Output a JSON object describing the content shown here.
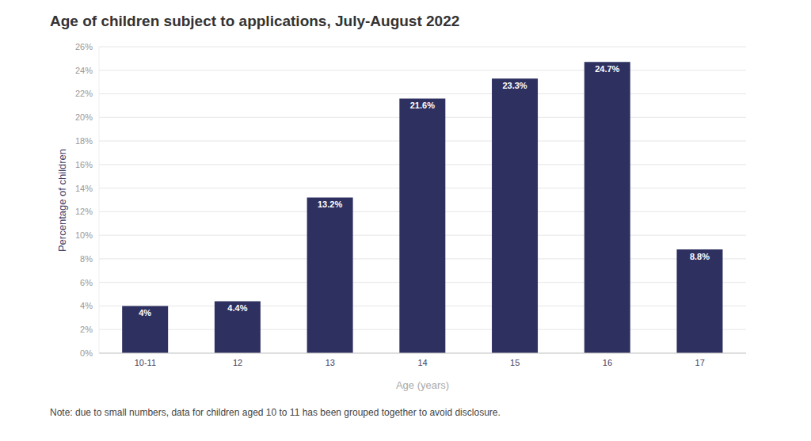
{
  "chart_data": {
    "type": "bar",
    "title": "Age of children subject to applications, July-August 2022",
    "x_label": "Age (years)",
    "y_label": "Percentage of children",
    "note": "Note: due to small numbers, data for children aged 10 to 11 has been grouped together to avoid disclosure.",
    "categories": [
      "10-11",
      "12",
      "13",
      "14",
      "15",
      "16",
      "17"
    ],
    "values": [
      4,
      4.4,
      13.2,
      21.6,
      23.3,
      24.7,
      8.8
    ],
    "value_labels": [
      "4%",
      "4.4%",
      "13.2%",
      "21.6%",
      "23.3%",
      "24.7%",
      "8.8%"
    ],
    "color": "#2e3160",
    "ylim": [
      0,
      26
    ],
    "yticks": [
      {
        "value": 0,
        "label": "0%"
      },
      {
        "value": 2,
        "label": "2%"
      },
      {
        "value": 4,
        "label": "4%"
      },
      {
        "value": 6,
        "label": "6%"
      },
      {
        "value": 8,
        "label": "8%"
      },
      {
        "value": 10,
        "label": "10%"
      },
      {
        "value": 12,
        "label": "12%"
      },
      {
        "value": 14,
        "label": "14%"
      },
      {
        "value": 16,
        "label": "16%"
      },
      {
        "value": 18,
        "label": "18%"
      },
      {
        "value": 20,
        "label": "20%"
      },
      {
        "value": 22,
        "label": "22%"
      },
      {
        "value": 24,
        "label": "24%"
      },
      {
        "value": 26,
        "label": "26%"
      }
    ],
    "grid": true,
    "data_labels": true
  }
}
